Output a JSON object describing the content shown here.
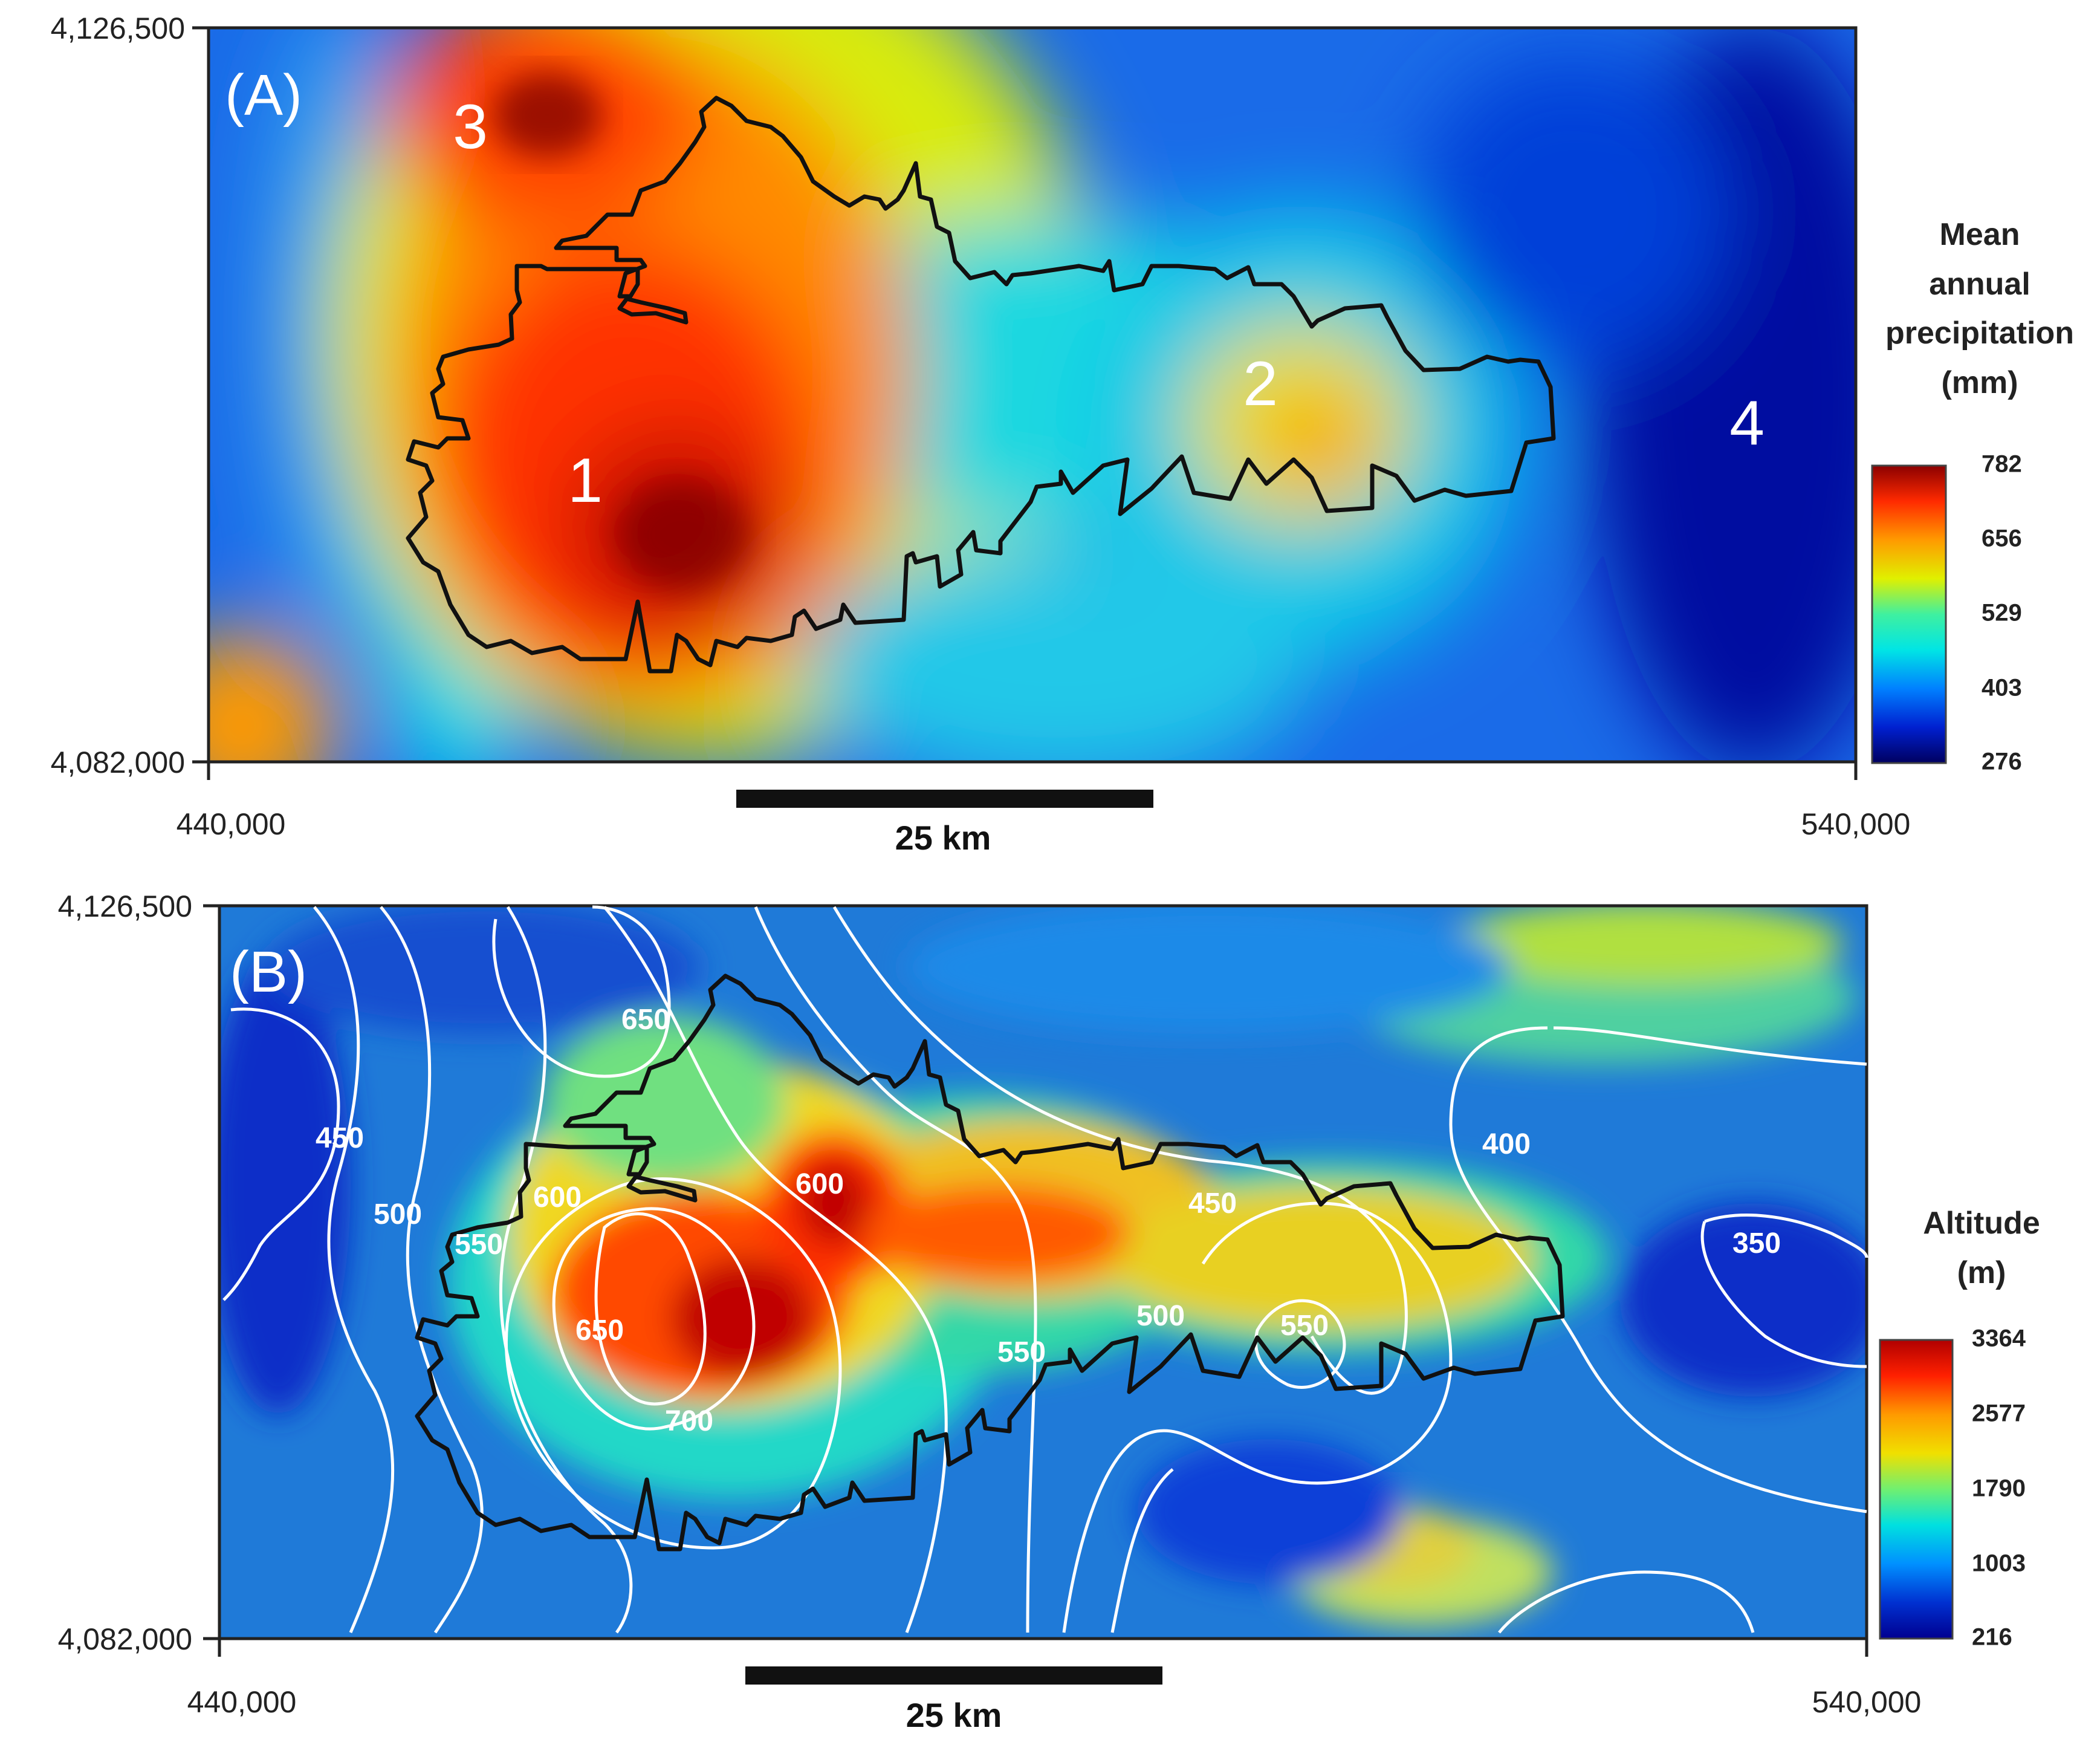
{
  "panels": [
    {
      "id": "A",
      "letter": "(A)",
      "y_top_label": "4,126,500",
      "y_bottom_label": "4,082,000",
      "x_left_label": "440,000",
      "x_right_label": "540,000",
      "scale_bar": "25 km",
      "regions": [
        {
          "label": "1"
        },
        {
          "label": "2"
        },
        {
          "label": "3"
        },
        {
          "label": "4"
        }
      ],
      "legend": {
        "title_lines": [
          "Mean",
          "annual",
          "precipitation",
          "(mm)"
        ],
        "ticks": [
          "782",
          "656",
          "529",
          "403",
          "276"
        ],
        "colors": [
          "#8b0000",
          "#ff2a00",
          "#ffaa00",
          "#e0f000",
          "#3ff0a0",
          "#00e5e5",
          "#0080ff",
          "#0020d0",
          "#000060"
        ]
      }
    },
    {
      "id": "B",
      "letter": "(B)",
      "y_top_label": "4,126,500",
      "y_bottom_label": "4,082,000",
      "x_left_label": "440,000",
      "x_right_label": "540,000",
      "scale_bar": "25 km",
      "contour_labels": [
        "650",
        "450",
        "500",
        "550",
        "600",
        "600",
        "650",
        "700",
        "550",
        "450",
        "500",
        "550",
        "400",
        "350"
      ],
      "legend": {
        "title_lines": [
          "Altitude",
          "(m)"
        ],
        "ticks": [
          "3364",
          "2577",
          "1790",
          "1003",
          "216"
        ],
        "colors": [
          "#b00000",
          "#ff2000",
          "#ff9a00",
          "#f0e000",
          "#70f070",
          "#00e0e0",
          "#0090ff",
          "#0030d0",
          "#000090"
        ]
      }
    }
  ]
}
